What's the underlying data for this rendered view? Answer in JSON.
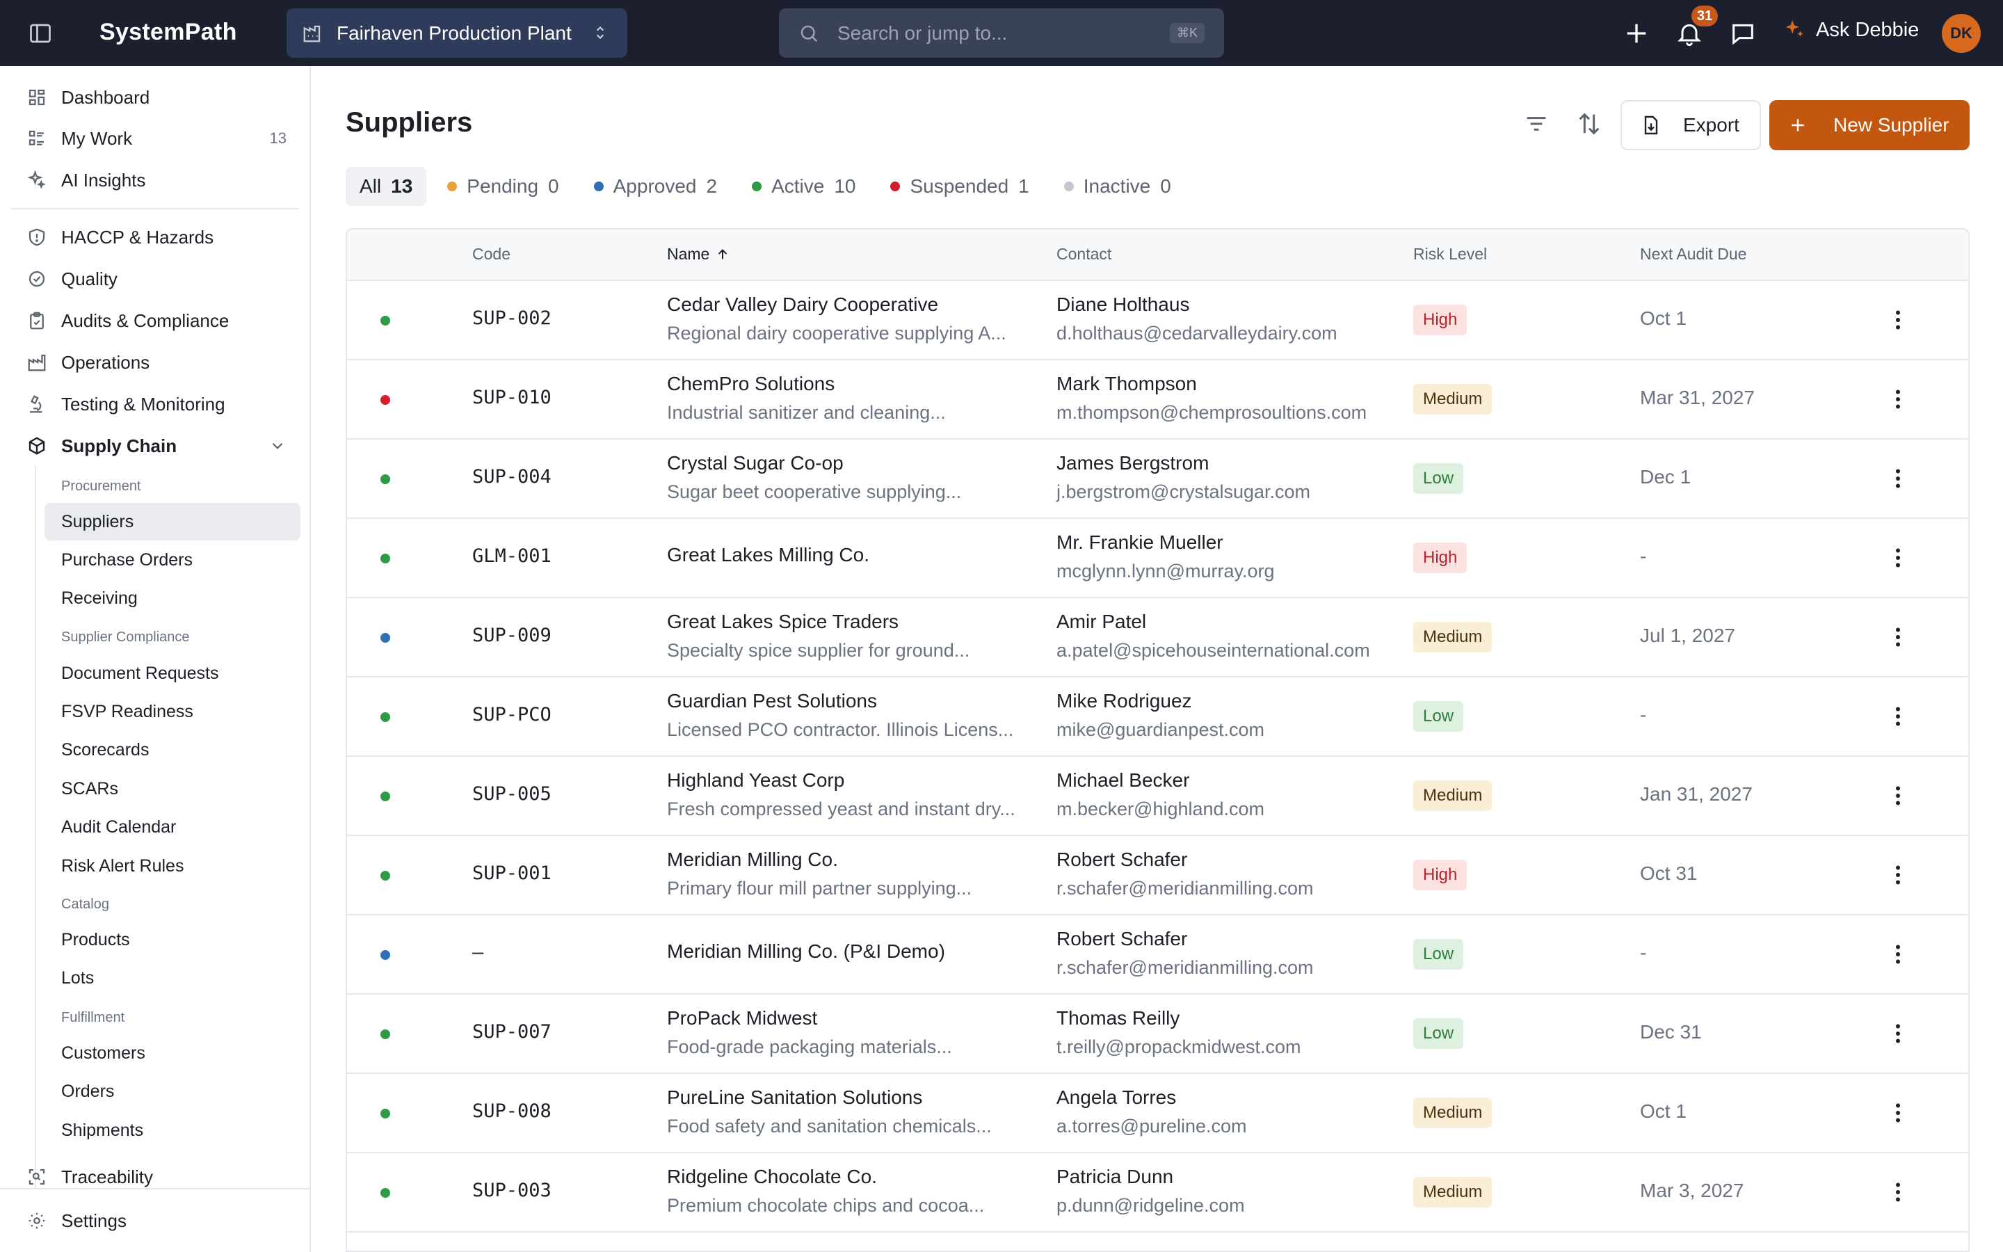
{
  "topbar": {
    "brand": "SystemPath",
    "org": "Fairhaven Production Plant",
    "search_placeholder": "Search or jump to...",
    "search_shortcut": "⌘K",
    "notification_count": "31",
    "assistant_label": "Ask Debbie",
    "avatar_initials": "DK"
  },
  "sidebar": {
    "top_items": [
      {
        "label": "Dashboard",
        "icon": "grid-icon"
      },
      {
        "label": "My Work",
        "icon": "list-icon",
        "count": "13"
      },
      {
        "label": "AI Insights",
        "icon": "sparkle-icon"
      }
    ],
    "modules": [
      {
        "label": "HACCP & Hazards",
        "icon": "shield-icon"
      },
      {
        "label": "Quality",
        "icon": "check-circle-icon"
      },
      {
        "label": "Audits & Compliance",
        "icon": "clipboard-icon"
      },
      {
        "label": "Operations",
        "icon": "factory-icon"
      },
      {
        "label": "Testing & Monitoring",
        "icon": "microscope-icon"
      },
      {
        "label": "Supply Chain",
        "icon": "box-icon"
      }
    ],
    "supply_chain": {
      "procurement_heading": "Procurement",
      "procurement": [
        "Suppliers",
        "Purchase Orders",
        "Receiving"
      ],
      "compliance_heading": "Supplier Compliance",
      "compliance": [
        "Document Requests",
        "FSVP Readiness",
        "Scorecards",
        "SCARs",
        "Audit Calendar",
        "Risk Alert Rules"
      ],
      "catalog_heading": "Catalog",
      "catalog": [
        "Products",
        "Lots"
      ],
      "fulfillment_heading": "Fulfillment",
      "fulfillment": [
        "Customers",
        "Orders",
        "Shipments"
      ]
    },
    "traceability": "Traceability",
    "settings": "Settings"
  },
  "page": {
    "title": "Suppliers",
    "export_label": "Export",
    "new_label": "New Supplier"
  },
  "tabs": [
    {
      "label": "All",
      "count": "13"
    },
    {
      "label": "Pending",
      "count": "0",
      "color": "#e8a23a"
    },
    {
      "label": "Approved",
      "count": "2",
      "color": "#2f6fb3"
    },
    {
      "label": "Active",
      "count": "10",
      "color": "#2e9a45"
    },
    {
      "label": "Suspended",
      "count": "1",
      "color": "#d61f2c"
    },
    {
      "label": "Inactive",
      "count": "0",
      "color": "#c3c7cf"
    }
  ],
  "table": {
    "headers": {
      "code": "Code",
      "name": "Name",
      "contact": "Contact",
      "risk": "Risk Level",
      "audit": "Next Audit Due"
    },
    "rows": [
      {
        "status_color": "#2e9a45",
        "code": "SUP-002",
        "name": "Cedar Valley Dairy Cooperative",
        "desc": "Regional dairy cooperative supplying A...",
        "contact": "Diane Holthaus",
        "email": "d.holthaus@cedarvalleydairy.com",
        "risk": "High",
        "audit": "Oct 1"
      },
      {
        "status_color": "#d61f2c",
        "code": "SUP-010",
        "name": "ChemPro Solutions",
        "desc": "Industrial sanitizer and cleaning...",
        "contact": "Mark Thompson",
        "email": "m.thompson@chemprosoultions.com",
        "risk": "Medium",
        "audit": "Mar 31, 2027"
      },
      {
        "status_color": "#2e9a45",
        "code": "SUP-004",
        "name": "Crystal Sugar Co-op",
        "desc": "Sugar beet cooperative supplying...",
        "contact": "James Bergstrom",
        "email": "j.bergstrom@crystalsugar.com",
        "risk": "Low",
        "audit": "Dec 1"
      },
      {
        "status_color": "#2e9a45",
        "code": "GLM-001",
        "name": "Great Lakes Milling Co.",
        "desc": "",
        "contact": "Mr. Frankie Mueller",
        "email": "mcglynn.lynn@murray.org",
        "risk": "High",
        "audit": "-"
      },
      {
        "status_color": "#2f6fb3",
        "code": "SUP-009",
        "name": "Great Lakes Spice Traders",
        "desc": "Specialty spice supplier for ground...",
        "contact": "Amir Patel",
        "email": "a.patel@spicehouseinternational.com",
        "risk": "Medium",
        "audit": "Jul 1, 2027"
      },
      {
        "status_color": "#2e9a45",
        "code": "SUP-PCO",
        "name": "Guardian Pest Solutions",
        "desc": "Licensed PCO contractor. Illinois Licens...",
        "contact": "Mike Rodriguez",
        "email": "mike@guardianpest.com",
        "risk": "Low",
        "audit": "-"
      },
      {
        "status_color": "#2e9a45",
        "code": "SUP-005",
        "name": "Highland Yeast Corp",
        "desc": "Fresh compressed yeast and instant dry...",
        "contact": "Michael Becker",
        "email": "m.becker@highland.com",
        "risk": "Medium",
        "audit": "Jan 31, 2027"
      },
      {
        "status_color": "#2e9a45",
        "code": "SUP-001",
        "name": "Meridian Milling Co.",
        "desc": "Primary flour mill partner supplying...",
        "contact": "Robert Schafer",
        "email": "r.schafer@meridianmilling.com",
        "risk": "High",
        "audit": "Oct 31"
      },
      {
        "status_color": "#2f6fb3",
        "code": "–",
        "name": "Meridian Milling Co. (P&I Demo)",
        "desc": "",
        "contact": "Robert Schafer",
        "email": "r.schafer@meridianmilling.com",
        "risk": "Low",
        "audit": "-"
      },
      {
        "status_color": "#2e9a45",
        "code": "SUP-007",
        "name": "ProPack Midwest",
        "desc": "Food-grade packaging materials...",
        "contact": "Thomas Reilly",
        "email": "t.reilly@propackmidwest.com",
        "risk": "Low",
        "audit": "Dec 31"
      },
      {
        "status_color": "#2e9a45",
        "code": "SUP-008",
        "name": "PureLine Sanitation Solutions",
        "desc": "Food safety and sanitation chemicals...",
        "contact": "Angela Torres",
        "email": "a.torres@pureline.com",
        "risk": "Medium",
        "audit": "Oct 1"
      },
      {
        "status_color": "#2e9a45",
        "code": "SUP-003",
        "name": "Ridgeline Chocolate Co.",
        "desc": "Premium chocolate chips and cocoa...",
        "contact": "Patricia Dunn",
        "email": "p.dunn@ridgeline.com",
        "risk": "Medium",
        "audit": "Mar 3, 2027"
      }
    ]
  }
}
